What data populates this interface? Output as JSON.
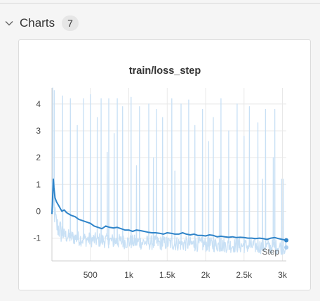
{
  "section": {
    "title": "Charts",
    "count": "7"
  },
  "colors": {
    "raw_series": "#c8e0f5",
    "smoothed_series": "#2f84c9",
    "grid": "#e8e8e8",
    "axis": "#cfcfcf"
  },
  "icons": {
    "collapse": "chevron-down-icon"
  },
  "chart_data": {
    "type": "line",
    "title": "train/loss_step",
    "xlabel": "Step",
    "ylabel": "",
    "xlim": [
      0,
      3050
    ],
    "ylim": [
      -1.85,
      4.6
    ],
    "x_ticks": [
      500,
      1000,
      1500,
      2000,
      2500,
      3000
    ],
    "x_tick_labels": [
      "500",
      "1k",
      "1.5k",
      "2k",
      "2.5k",
      "3k"
    ],
    "y_ticks": [
      -1,
      0,
      1,
      2,
      3,
      4
    ],
    "y_tick_labels": [
      "-1",
      "0",
      "1",
      "2",
      "3",
      "4"
    ],
    "grid": true,
    "series": [
      {
        "role": "raw",
        "baseline": [
          [
            0,
            0.8
          ],
          [
            20,
            0.0
          ],
          [
            60,
            -0.7
          ],
          [
            120,
            -0.95
          ],
          [
            200,
            -1.05
          ],
          [
            400,
            -1.15
          ],
          [
            700,
            -1.2
          ],
          [
            1000,
            -1.25
          ],
          [
            1500,
            -1.3
          ],
          [
            2000,
            -1.35
          ],
          [
            2500,
            -1.4
          ],
          [
            3050,
            -1.45
          ]
        ],
        "spikes": [
          [
            10,
            4.6
          ],
          [
            30,
            4.5
          ],
          [
            140,
            4.3
          ],
          [
            240,
            4.2
          ],
          [
            330,
            3.2
          ],
          [
            410,
            4.2
          ],
          [
            500,
            4.35
          ],
          [
            590,
            3.5
          ],
          [
            640,
            4.2
          ],
          [
            720,
            2.2
          ],
          [
            740,
            4.2
          ],
          [
            810,
            2.9
          ],
          [
            850,
            4.2
          ],
          [
            920,
            3.9
          ],
          [
            1030,
            4.25
          ],
          [
            1100,
            1.7
          ],
          [
            1140,
            3.9
          ],
          [
            1260,
            4.0
          ],
          [
            1320,
            2.0
          ],
          [
            1360,
            3.8
          ],
          [
            1440,
            3.5
          ],
          [
            1560,
            4.2
          ],
          [
            1600,
            1.5
          ],
          [
            1680,
            4.0
          ],
          [
            1780,
            4.15
          ],
          [
            1860,
            3.2
          ],
          [
            1960,
            3.8
          ],
          [
            2040,
            2.6
          ],
          [
            2100,
            3.5
          ],
          [
            2180,
            1.2
          ],
          [
            2200,
            4.2
          ],
          [
            2300,
            3.0
          ],
          [
            2410,
            4.0
          ],
          [
            2500,
            2.8
          ],
          [
            2570,
            3.9
          ],
          [
            2680,
            3.3
          ],
          [
            2740,
            1.2
          ],
          [
            2780,
            3.8
          ],
          [
            2880,
            2.0
          ],
          [
            2900,
            3.8
          ],
          [
            2990,
            1.2
          ],
          [
            3010,
            1.2
          ]
        ]
      },
      {
        "role": "smoothed",
        "points": [
          [
            0,
            -0.1
          ],
          [
            10,
            0.6
          ],
          [
            18,
            1.2
          ],
          [
            26,
            0.9
          ],
          [
            40,
            0.5
          ],
          [
            60,
            0.35
          ],
          [
            90,
            0.2
          ],
          [
            110,
            0.1
          ],
          [
            130,
            0.0
          ],
          [
            160,
            0.05
          ],
          [
            190,
            -0.05
          ],
          [
            220,
            -0.1
          ],
          [
            250,
            -0.15
          ],
          [
            300,
            -0.2
          ],
          [
            350,
            -0.3
          ],
          [
            400,
            -0.35
          ],
          [
            450,
            -0.4
          ],
          [
            500,
            -0.45
          ],
          [
            550,
            -0.55
          ],
          [
            600,
            -0.6
          ],
          [
            650,
            -0.65
          ],
          [
            700,
            -0.55
          ],
          [
            750,
            -0.6
          ],
          [
            800,
            -0.62
          ],
          [
            850,
            -0.6
          ],
          [
            900,
            -0.65
          ],
          [
            950,
            -0.7
          ],
          [
            1000,
            -0.7
          ],
          [
            1050,
            -0.75
          ],
          [
            1100,
            -0.7
          ],
          [
            1150,
            -0.72
          ],
          [
            1200,
            -0.75
          ],
          [
            1250,
            -0.78
          ],
          [
            1300,
            -0.8
          ],
          [
            1350,
            -0.8
          ],
          [
            1400,
            -0.82
          ],
          [
            1450,
            -0.85
          ],
          [
            1500,
            -0.8
          ],
          [
            1550,
            -0.82
          ],
          [
            1600,
            -0.85
          ],
          [
            1650,
            -0.85
          ],
          [
            1700,
            -0.8
          ],
          [
            1750,
            -0.85
          ],
          [
            1800,
            -0.88
          ],
          [
            1850,
            -0.85
          ],
          [
            1900,
            -0.9
          ],
          [
            1950,
            -0.9
          ],
          [
            2000,
            -0.92
          ],
          [
            2050,
            -0.88
          ],
          [
            2100,
            -0.9
          ],
          [
            2150,
            -0.95
          ],
          [
            2200,
            -0.93
          ],
          [
            2250,
            -0.95
          ],
          [
            2300,
            -0.97
          ],
          [
            2350,
            -0.95
          ],
          [
            2400,
            -0.98
          ],
          [
            2450,
            -0.97
          ],
          [
            2500,
            -0.98
          ],
          [
            2550,
            -1.0
          ],
          [
            2600,
            -1.0
          ],
          [
            2650,
            -1.02
          ],
          [
            2700,
            -1.0
          ],
          [
            2750,
            -1.02
          ],
          [
            2800,
            -1.05
          ],
          [
            2850,
            -1.0
          ],
          [
            2900,
            -0.98
          ],
          [
            2950,
            -1.02
          ],
          [
            3000,
            -1.05
          ],
          [
            3050,
            -1.08
          ]
        ],
        "last_value": -1.08,
        "last_raw_value": -1.35
      }
    ]
  }
}
